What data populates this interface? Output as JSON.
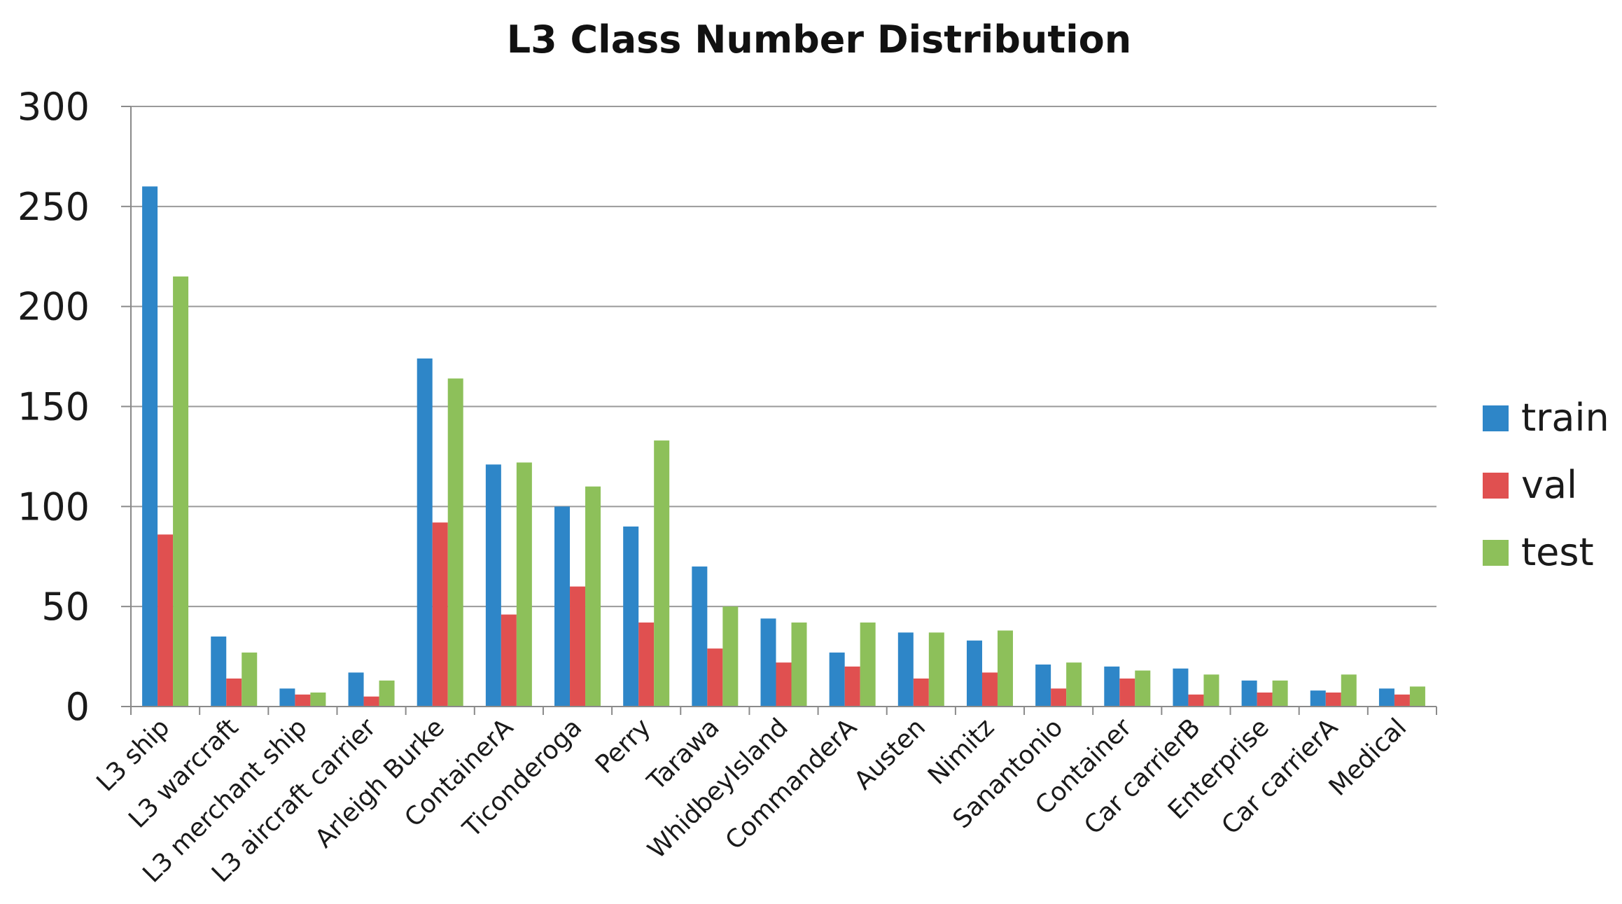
{
  "chart_data": {
    "type": "bar",
    "title": "L3 Class Number Distribution",
    "xlabel": "",
    "ylabel": "",
    "ylim": [
      0,
      300
    ],
    "yticks": [
      0,
      50,
      100,
      150,
      200,
      250,
      300
    ],
    "grid": true,
    "legend_position": "right",
    "categories": [
      "L3 ship",
      "L3 warcraft",
      "L3 merchant ship",
      "L3 aircraft carrier",
      "Arleigh Burke",
      "ContainerA",
      "Ticonderoga",
      "Perry",
      "Tarawa",
      "WhidbeyIsland",
      "CommanderA",
      "Austen",
      "Nimitz",
      "Sanantonio",
      "Container",
      "Car carrierB",
      "Enterprise",
      "Car carrierA",
      "Medical"
    ],
    "series": [
      {
        "name": "train",
        "color": "#2e86c8",
        "values": [
          260,
          35,
          9,
          17,
          174,
          121,
          100,
          90,
          70,
          44,
          27,
          37,
          33,
          21,
          20,
          19,
          13,
          8,
          9
        ]
      },
      {
        "name": "val",
        "color": "#e05050",
        "values": [
          86,
          14,
          6,
          5,
          92,
          46,
          60,
          42,
          29,
          22,
          20,
          14,
          17,
          9,
          14,
          6,
          7,
          7,
          6
        ]
      },
      {
        "name": "test",
        "color": "#8dc05a",
        "values": [
          215,
          27,
          7,
          13,
          164,
          122,
          110,
          133,
          50,
          42,
          42,
          37,
          38,
          22,
          18,
          16,
          13,
          16,
          10
        ]
      }
    ]
  }
}
